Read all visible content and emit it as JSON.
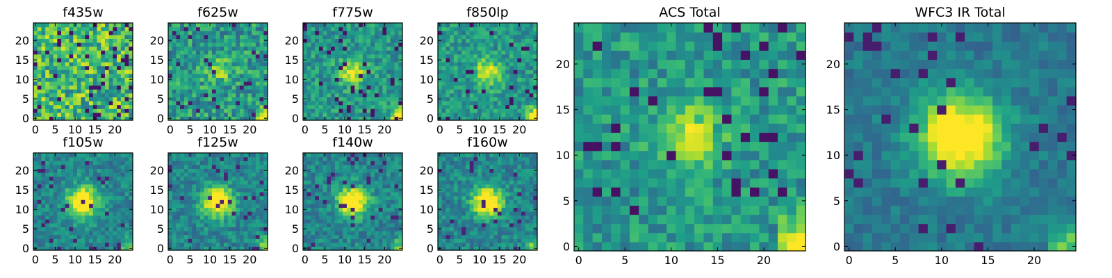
{
  "chart_data": [
    {
      "type": "heatmap",
      "title": "f435w",
      "xticks": [
        0,
        5,
        10,
        15,
        20
      ],
      "yticks": [
        0,
        5,
        10,
        15,
        20
      ],
      "xlim": [
        0,
        25
      ],
      "ylim": [
        0,
        25
      ],
      "colormap": "viridis",
      "grid": false,
      "peak": [
        12,
        12
      ],
      "mode": "noise"
    },
    {
      "type": "heatmap",
      "title": "f625w",
      "xticks": [
        0,
        5,
        10,
        15,
        20
      ],
      "yticks": [
        0,
        5,
        10,
        15,
        20
      ],
      "xlim": [
        0,
        25
      ],
      "ylim": [
        0,
        25
      ],
      "colormap": "viridis",
      "grid": false,
      "peak": [
        12,
        12
      ],
      "mode": "faint"
    },
    {
      "type": "heatmap",
      "title": "f775w",
      "xticks": [
        0,
        5,
        10,
        15,
        20
      ],
      "yticks": [
        0,
        5,
        10,
        15,
        20
      ],
      "xlim": [
        0,
        25
      ],
      "ylim": [
        0,
        25
      ],
      "colormap": "viridis",
      "grid": false,
      "peak": [
        12,
        12
      ],
      "mode": "acs"
    },
    {
      "type": "heatmap",
      "title": "f850lp",
      "xticks": [
        0,
        5,
        10,
        15,
        20
      ],
      "yticks": [
        0,
        5,
        10,
        15,
        20
      ],
      "xlim": [
        0,
        25
      ],
      "ylim": [
        0,
        25
      ],
      "colormap": "viridis",
      "grid": false,
      "peak": [
        12,
        12
      ],
      "mode": "acs"
    },
    {
      "type": "heatmap",
      "title": "f105w",
      "xticks": [
        0,
        5,
        10,
        15,
        20
      ],
      "yticks": [
        0,
        5,
        10,
        15,
        20
      ],
      "xlim": [
        0,
        25
      ],
      "ylim": [
        0,
        25
      ],
      "colormap": "viridis",
      "grid": false,
      "peak": [
        12,
        12
      ],
      "mode": "ir"
    },
    {
      "type": "heatmap",
      "title": "f125w",
      "xticks": [
        0,
        5,
        10,
        15,
        20
      ],
      "yticks": [
        0,
        5,
        10,
        15,
        20
      ],
      "xlim": [
        0,
        25
      ],
      "ylim": [
        0,
        25
      ],
      "colormap": "viridis",
      "grid": false,
      "peak": [
        12,
        12
      ],
      "mode": "ir"
    },
    {
      "type": "heatmap",
      "title": "f140w",
      "xticks": [
        0,
        5,
        10,
        15,
        20
      ],
      "yticks": [
        0,
        5,
        10,
        15,
        20
      ],
      "xlim": [
        0,
        25
      ],
      "ylim": [
        0,
        25
      ],
      "colormap": "viridis",
      "grid": false,
      "peak": [
        12,
        12
      ],
      "mode": "ir"
    },
    {
      "type": "heatmap",
      "title": "f160w",
      "xticks": [
        0,
        5,
        10,
        15,
        20
      ],
      "yticks": [
        0,
        5,
        10,
        15,
        20
      ],
      "xlim": [
        0,
        25
      ],
      "ylim": [
        0,
        25
      ],
      "colormap": "viridis",
      "grid": false,
      "peak": [
        12,
        12
      ],
      "mode": "ir"
    },
    {
      "type": "heatmap",
      "title": "ACS Total",
      "xticks": [
        0,
        5,
        10,
        15,
        20
      ],
      "yticks": [
        0,
        5,
        10,
        15,
        20
      ],
      "xlim": [
        0,
        25
      ],
      "ylim": [
        0,
        25
      ],
      "colormap": "viridis",
      "grid": false,
      "peak": [
        12,
        12
      ],
      "mode": "acs"
    },
    {
      "type": "heatmap",
      "title": "WFC3 IR Total",
      "xticks": [
        0,
        5,
        10,
        15,
        20
      ],
      "yticks": [
        0,
        5,
        10,
        15,
        20
      ],
      "xlim": [
        0,
        25
      ],
      "ylim": [
        0,
        25
      ],
      "colormap": "viridis",
      "grid": false,
      "peak": [
        12,
        12
      ],
      "mode": "irtotal"
    }
  ]
}
